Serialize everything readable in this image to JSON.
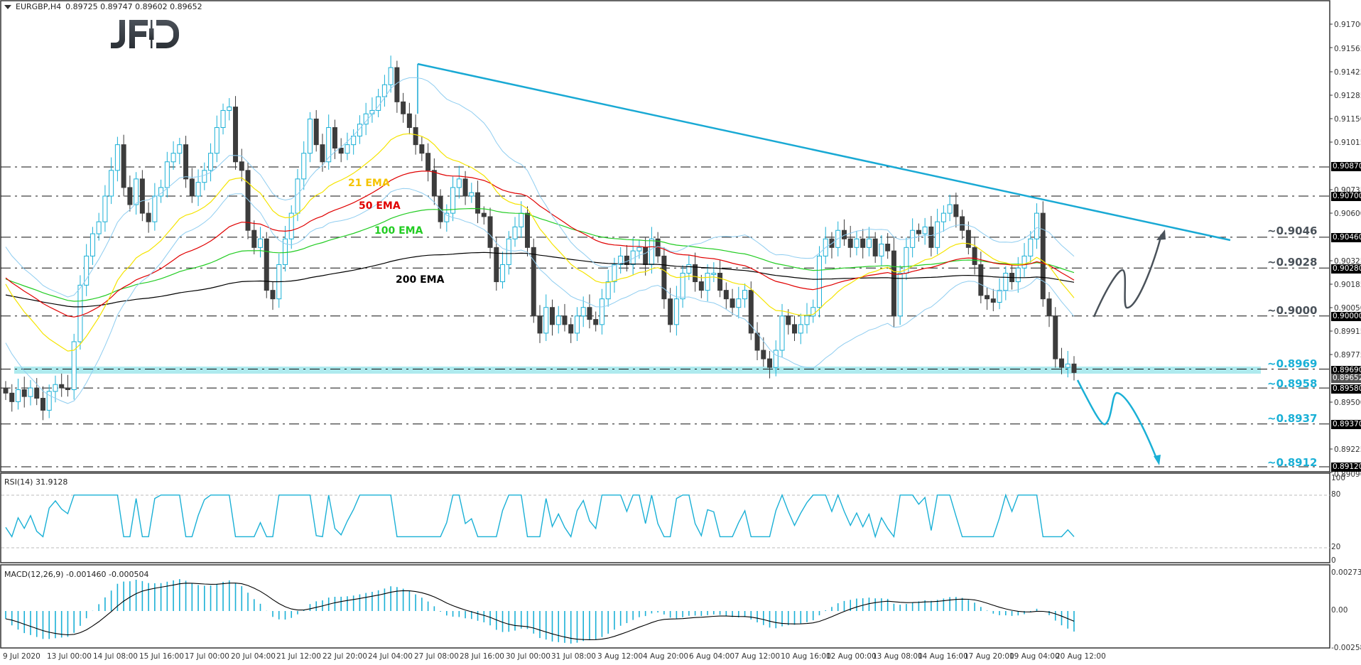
{
  "header": {
    "symbol": "EURGBP,H4",
    "ohlc": "0.89725 0.89747 0.89602 0.89652"
  },
  "logo": {
    "text": "JFD"
  },
  "price_axis": {
    "ticks": [
      "0.91700",
      "0.91565",
      "0.91425",
      "0.91285",
      "0.91150",
      "0.91015",
      "0.90735",
      "0.90600",
      "0.90325",
      "0.90185",
      "0.90050",
      "0.89915",
      "0.89775",
      "0.89500",
      "0.89225",
      "0.89090"
    ],
    "boxed": [
      "0.90870",
      "0.90700",
      "0.90460",
      "0.90280",
      "0.90000",
      "0.89690",
      "0.89580",
      "0.89370",
      "0.89120"
    ],
    "current": "0.89652"
  },
  "levels": [
    {
      "label": "~0.9046",
      "price": 0.9046,
      "color": "#4a525a"
    },
    {
      "label": "~0.9028",
      "price": 0.9028,
      "color": "#4a525a"
    },
    {
      "label": "~0.9000",
      "price": 0.9,
      "color": "#4a525a"
    },
    {
      "label": "~0.8969",
      "price": 0.8969,
      "color": "#1ab0d6"
    },
    {
      "label": "~0.8958",
      "price": 0.8958,
      "color": "#1ab0d6"
    },
    {
      "label": "~0.8937",
      "price": 0.8937,
      "color": "#1ab0d6"
    },
    {
      "label": "~0.8912",
      "price": 0.8912,
      "color": "#1ab0d6"
    }
  ],
  "ema_labels": [
    {
      "text": "21 EMA",
      "color": "#f5c400"
    },
    {
      "text": "50 EMA",
      "color": "#e00000"
    },
    {
      "text": "100 EMA",
      "color": "#22cc22"
    },
    {
      "text": "200 EMA",
      "color": "#000000"
    }
  ],
  "rsi": {
    "label": "RSI(14) 31.9128",
    "ticks": [
      "100",
      "80",
      "20",
      "0"
    ]
  },
  "macd": {
    "label": "MACD(12,26,9) -0.001460 -0.000504",
    "ticks": [
      "0.002734",
      "0.00",
      "-0.002582"
    ]
  },
  "time_axis": [
    "9 Jul 2020",
    "13 Jul 00:00",
    "14 Jul 08:00",
    "15 Jul 16:00",
    "17 Jul 00:00",
    "20 Jul 04:00",
    "21 Jul 12:00",
    "22 Jul 20:00",
    "24 Jul 04:00",
    "27 Jul 08:00",
    "28 Jul 16:00",
    "30 Jul 00:00",
    "31 Jul 08:00",
    "3 Aug 12:00",
    "4 Aug 20:00",
    "6 Aug 04:00",
    "7 Aug 12:00",
    "10 Aug 16:00",
    "12 Aug 00:00",
    "13 Aug 08:00",
    "14 Aug 16:00",
    "17 Aug 20:00",
    "19 Aug 04:00",
    "20 Aug 12:00"
  ],
  "colors": {
    "bull": "#1ab0d6",
    "bear": "#3c3c3c",
    "trendline": "#19a9d4",
    "support_zone": "#aeeaee",
    "bollinger": "#8fcdf0",
    "rsi_line": "#1ab0d6",
    "macd_hist": "#1ab0d6",
    "macd_signal": "#000000"
  },
  "chart_data": {
    "type": "candlestick",
    "title": "EURGBP,H4",
    "xlabel": "",
    "ylabel": "Price",
    "ylim": [
      0.8909,
      0.917
    ],
    "x": [
      "9 Jul 2020",
      "13 Jul 00:00",
      "14 Jul 08:00",
      "15 Jul 16:00",
      "17 Jul 00:00",
      "20 Jul 04:00",
      "21 Jul 12:00",
      "22 Jul 20:00",
      "24 Jul 04:00",
      "27 Jul 08:00",
      "28 Jul 16:00",
      "30 Jul 00:00",
      "31 Jul 08:00",
      "3 Aug 12:00",
      "4 Aug 20:00",
      "6 Aug 04:00",
      "7 Aug 12:00",
      "10 Aug 16:00",
      "12 Aug 00:00",
      "13 Aug 08:00",
      "14 Aug 16:00",
      "17 Aug 20:00",
      "19 Aug 04:00",
      "20 Aug 12:00"
    ],
    "approx_close": [
      0.8952,
      0.8975,
      0.9085,
      0.9095,
      0.9082,
      0.909,
      0.901,
      0.911,
      0.912,
      0.9135,
      0.906,
      0.9055,
      0.8995,
      0.9012,
      0.904,
      0.9015,
      0.9025,
      0.897,
      0.9045,
      0.9048,
      0.904,
      0.9035,
      0.9058,
      0.8965
    ],
    "last_ohlc": {
      "open": 0.89725,
      "high": 0.89747,
      "low": 0.89602,
      "close": 0.89652
    },
    "horizontal_levels": [
      0.9087,
      0.907,
      0.9046,
      0.9028,
      0.9,
      0.8969,
      0.8958,
      0.8937,
      0.8912
    ],
    "support_zone": [
      0.8965,
      0.897
    ],
    "downtrend_line": {
      "from": {
        "x": "27 Jul 08:00",
        "y": 0.9147
      },
      "to": {
        "x": "after 20 Aug 12:00",
        "y": 0.9046
      }
    },
    "moving_averages": [
      "21 EMA",
      "50 EMA",
      "100 EMA",
      "200 EMA"
    ],
    "scenarios": [
      {
        "direction": "up",
        "from": 0.9,
        "to": 0.9046
      },
      {
        "direction": "down",
        "from": 0.8965,
        "via": 0.8937,
        "to": 0.8912
      }
    ],
    "indicators": {
      "rsi": {
        "period": 14,
        "value": 31.9128,
        "levels": [
          20,
          80
        ],
        "ylim": [
          0,
          100
        ]
      },
      "macd": {
        "params": [
          12,
          26,
          9
        ],
        "main": -0.00146,
        "signal": -0.000504,
        "ylim": [
          -0.002582,
          0.002734
        ]
      }
    },
    "grid": false,
    "legend_position": "inline labels"
  }
}
